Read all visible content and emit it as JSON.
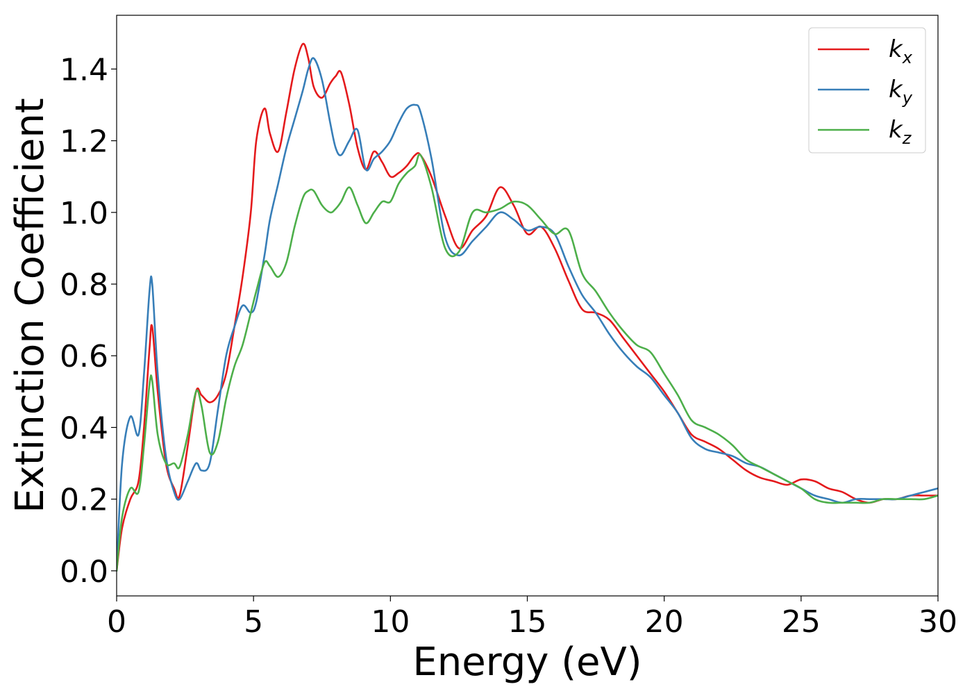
{
  "chart_data": {
    "type": "line",
    "title": "",
    "xlabel": "Energy (eV)",
    "ylabel": "Extinction Coefficient",
    "xlim": [
      0,
      30
    ],
    "ylim": [
      -0.07,
      1.55
    ],
    "xticks": [
      0,
      5,
      10,
      15,
      20,
      25,
      30
    ],
    "xtick_labels": [
      "0",
      "5",
      "10",
      "15",
      "20",
      "25",
      "30"
    ],
    "yticks": [
      0.0,
      0.2,
      0.4,
      0.6,
      0.8,
      1.0,
      1.2,
      1.4
    ],
    "ytick_labels": [
      "0.0",
      "0.2",
      "0.4",
      "0.6",
      "0.8",
      "1.0",
      "1.2",
      "1.4"
    ],
    "grid": false,
    "legend_position": "top-right",
    "series": [
      {
        "name": "k",
        "name_subscript": "x",
        "color": "#e41a1c",
        "x": [
          0,
          0.2,
          0.5,
          0.8,
          1.0,
          1.2,
          1.3,
          1.5,
          1.8,
          2.1,
          2.3,
          2.6,
          2.9,
          3.1,
          3.4,
          3.7,
          4.0,
          4.3,
          4.6,
          4.9,
          5.1,
          5.4,
          5.6,
          5.9,
          6.2,
          6.5,
          6.8,
          7.0,
          7.2,
          7.5,
          7.8,
          8.0,
          8.2,
          8.5,
          8.8,
          9.1,
          9.4,
          9.7,
          10.0,
          10.3,
          10.6,
          10.9,
          11.1,
          11.5,
          12.0,
          12.5,
          13.0,
          13.5,
          14.0,
          14.5,
          15.0,
          15.5,
          16.0,
          16.5,
          17.0,
          17.5,
          18.0,
          18.5,
          19.0,
          19.5,
          20.0,
          20.5,
          21.0,
          21.5,
          22.0,
          22.5,
          23.0,
          23.5,
          24.0,
          24.5,
          25.0,
          25.5,
          26.0,
          26.5,
          27.0,
          27.5,
          28.0,
          28.5,
          29.0,
          29.5,
          30.0
        ],
        "y": [
          0.0,
          0.12,
          0.2,
          0.25,
          0.4,
          0.62,
          0.68,
          0.5,
          0.3,
          0.23,
          0.21,
          0.35,
          0.5,
          0.49,
          0.47,
          0.49,
          0.55,
          0.68,
          0.82,
          1.0,
          1.2,
          1.29,
          1.22,
          1.17,
          1.28,
          1.4,
          1.47,
          1.43,
          1.35,
          1.32,
          1.36,
          1.38,
          1.39,
          1.3,
          1.18,
          1.12,
          1.17,
          1.14,
          1.1,
          1.11,
          1.13,
          1.16,
          1.16,
          1.1,
          0.99,
          0.9,
          0.95,
          0.99,
          1.07,
          1.02,
          0.94,
          0.96,
          0.9,
          0.81,
          0.73,
          0.72,
          0.7,
          0.65,
          0.6,
          0.55,
          0.5,
          0.44,
          0.38,
          0.36,
          0.34,
          0.31,
          0.28,
          0.26,
          0.25,
          0.24,
          0.255,
          0.25,
          0.23,
          0.22,
          0.2,
          0.19,
          0.2,
          0.2,
          0.21,
          0.21,
          0.21
        ]
      },
      {
        "name": "k",
        "name_subscript": "y",
        "color": "#377eb8",
        "x": [
          0,
          0.2,
          0.5,
          0.8,
          1.0,
          1.2,
          1.3,
          1.5,
          1.8,
          2.1,
          2.3,
          2.6,
          2.9,
          3.1,
          3.4,
          3.7,
          4.0,
          4.3,
          4.6,
          4.9,
          5.1,
          5.4,
          5.6,
          5.9,
          6.2,
          6.5,
          6.8,
          7.0,
          7.2,
          7.5,
          7.8,
          8.0,
          8.2,
          8.5,
          8.8,
          9.1,
          9.4,
          9.7,
          10.0,
          10.3,
          10.6,
          10.9,
          11.1,
          11.5,
          12.0,
          12.5,
          13.0,
          13.5,
          14.0,
          14.5,
          15.0,
          15.5,
          16.0,
          16.5,
          17.0,
          17.5,
          18.0,
          18.5,
          19.0,
          19.5,
          20.0,
          20.5,
          21.0,
          21.5,
          22.0,
          22.5,
          23.0,
          23.5,
          24.0,
          24.5,
          25.0,
          25.5,
          26.0,
          26.5,
          27.0,
          27.5,
          28.0,
          28.5,
          29.0,
          29.5,
          30.0
        ],
        "y": [
          0.0,
          0.3,
          0.43,
          0.38,
          0.55,
          0.78,
          0.8,
          0.55,
          0.32,
          0.22,
          0.2,
          0.25,
          0.3,
          0.28,
          0.3,
          0.45,
          0.6,
          0.68,
          0.74,
          0.72,
          0.75,
          0.88,
          0.98,
          1.08,
          1.18,
          1.26,
          1.34,
          1.4,
          1.43,
          1.37,
          1.25,
          1.18,
          1.16,
          1.2,
          1.23,
          1.12,
          1.15,
          1.17,
          1.2,
          1.25,
          1.29,
          1.3,
          1.28,
          1.15,
          0.93,
          0.88,
          0.92,
          0.96,
          1.0,
          0.98,
          0.95,
          0.96,
          0.94,
          0.85,
          0.77,
          0.72,
          0.66,
          0.61,
          0.57,
          0.54,
          0.49,
          0.44,
          0.37,
          0.34,
          0.33,
          0.32,
          0.3,
          0.29,
          0.27,
          0.25,
          0.23,
          0.21,
          0.2,
          0.19,
          0.2,
          0.2,
          0.2,
          0.2,
          0.21,
          0.22,
          0.23
        ]
      },
      {
        "name": "k",
        "name_subscript": "z",
        "color": "#4daf4a",
        "x": [
          0,
          0.2,
          0.5,
          0.8,
          1.0,
          1.2,
          1.3,
          1.5,
          1.8,
          2.1,
          2.3,
          2.6,
          2.9,
          3.1,
          3.4,
          3.7,
          4.0,
          4.3,
          4.6,
          4.9,
          5.1,
          5.4,
          5.6,
          5.9,
          6.2,
          6.5,
          6.8,
          7.0,
          7.2,
          7.5,
          7.8,
          8.0,
          8.2,
          8.5,
          8.8,
          9.1,
          9.4,
          9.7,
          10.0,
          10.3,
          10.6,
          10.9,
          11.1,
          11.5,
          12.0,
          12.5,
          13.0,
          13.5,
          14.0,
          14.5,
          15.0,
          15.5,
          16.0,
          16.5,
          17.0,
          17.5,
          18.0,
          18.5,
          19.0,
          19.5,
          20.0,
          20.5,
          21.0,
          21.5,
          22.0,
          22.5,
          23.0,
          23.5,
          24.0,
          24.5,
          25.0,
          25.5,
          26.0,
          26.5,
          27.0,
          27.5,
          28.0,
          28.5,
          29.0,
          29.5,
          30.0
        ],
        "y": [
          0.0,
          0.15,
          0.23,
          0.22,
          0.35,
          0.52,
          0.53,
          0.38,
          0.3,
          0.3,
          0.29,
          0.38,
          0.5,
          0.46,
          0.33,
          0.36,
          0.48,
          0.57,
          0.63,
          0.72,
          0.78,
          0.86,
          0.85,
          0.82,
          0.86,
          0.96,
          1.04,
          1.06,
          1.06,
          1.02,
          1.0,
          1.01,
          1.03,
          1.07,
          1.02,
          0.97,
          1.0,
          1.03,
          1.03,
          1.08,
          1.11,
          1.13,
          1.16,
          1.07,
          0.9,
          0.89,
          1.0,
          1.0,
          1.01,
          1.03,
          1.02,
          0.98,
          0.94,
          0.95,
          0.83,
          0.78,
          0.72,
          0.67,
          0.63,
          0.61,
          0.55,
          0.49,
          0.42,
          0.4,
          0.38,
          0.35,
          0.31,
          0.29,
          0.27,
          0.25,
          0.23,
          0.2,
          0.19,
          0.19,
          0.19,
          0.19,
          0.2,
          0.2,
          0.2,
          0.2,
          0.21
        ]
      }
    ]
  }
}
